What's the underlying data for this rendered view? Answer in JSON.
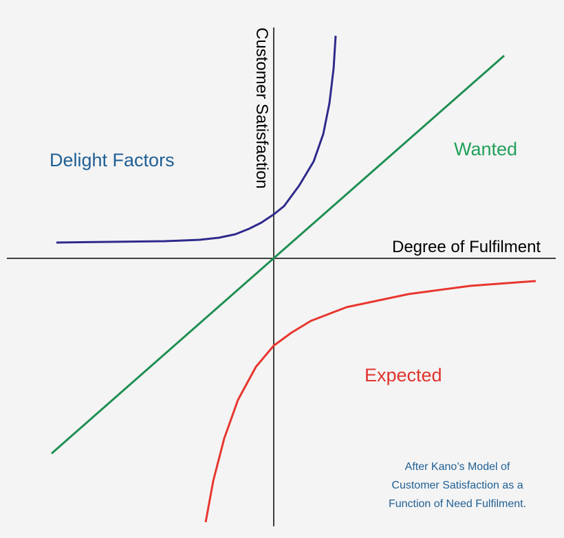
{
  "labels": {
    "y_axis": "Customer Satisfaction",
    "x_axis": "Degree of Fulfilment",
    "delight": "Delight Factors",
    "wanted": "Wanted",
    "expected": "Expected"
  },
  "caption": {
    "line1": "After Kano’s Model of",
    "line2": "Customer Satisfaction as a",
    "line3": "Function of Need Fulfilment."
  },
  "colors": {
    "axis": "#000000",
    "delight_curve": "#2e2a8c",
    "wanted_line": "#1f8f52",
    "expected_curve": "#e8362e",
    "delight_label": "#1f5f94",
    "wanted_label": "#22a05a",
    "expected_label": "#e0332c",
    "caption_text": "#1f5f94",
    "background": "#f4f4f4"
  }
}
